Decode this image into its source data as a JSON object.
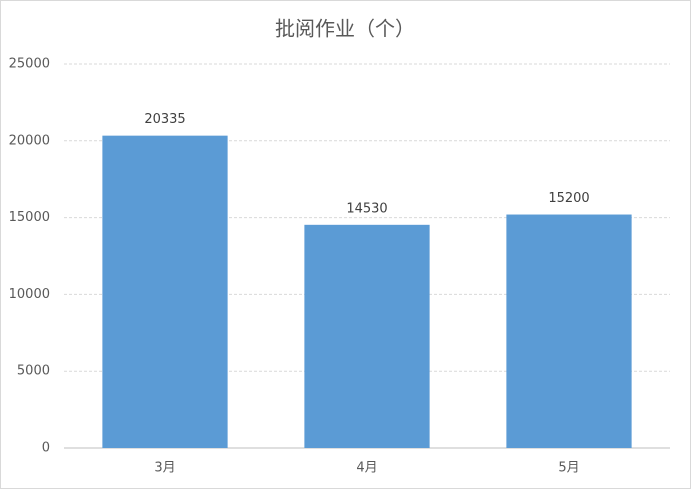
{
  "chart_data": {
    "type": "bar",
    "title": "批阅作业（个）",
    "categories": [
      "3月",
      "4月",
      "5月"
    ],
    "values": [
      20335,
      14530,
      15200
    ],
    "color": "#5b9bd5",
    "ylim": [
      0,
      25000
    ],
    "yticks": [
      0,
      5000,
      10000,
      15000,
      20000,
      25000
    ],
    "grid": true
  }
}
